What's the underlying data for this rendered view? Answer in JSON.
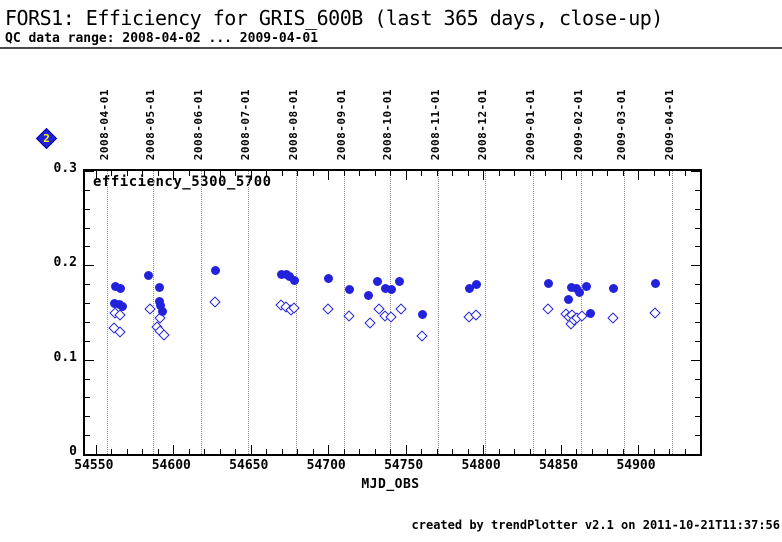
{
  "page": {
    "title": "FORS1: Efficiency for GRIS_600B (last 365 days, close-up)",
    "subtitle": "QC data range: 2008-04-02 ... 2009-04-01",
    "footer": "created by trendPlotter v2.1 on 2011-10-21T11:37:56"
  },
  "legend_marker": {
    "number": "2",
    "fill": "#2222dd",
    "number_color": "#ffff00"
  },
  "chart_data": {
    "type": "scatter",
    "inside_label": "efficiency_5300_5700",
    "xlabel": "MJD_OBS",
    "ylabel": "",
    "xlim": [
      54543,
      54940
    ],
    "ylim": [
      0,
      0.3
    ],
    "grid": "vertical-dotted-months",
    "point_color": "#2222dd",
    "grid_color": "#8a8a8a",
    "x_major_ticks": [
      54550,
      54600,
      54650,
      54700,
      54750,
      54800,
      54850,
      54900
    ],
    "x_major_tick_labels": [
      "54550",
      "54600",
      "54650",
      "54700",
      "54750",
      "54800",
      "54850",
      "54900"
    ],
    "x_minor_step": 10,
    "y_major_ticks": [
      0,
      0.1,
      0.2,
      0.3
    ],
    "y_major_tick_labels": [
      "0",
      "0.1",
      "0.2",
      "0.3"
    ],
    "y_minor_step": 0.02,
    "month_gridlines": [
      {
        "mjd": 54557,
        "label": "2008-04-01"
      },
      {
        "mjd": 54587,
        "label": "2008-05-01"
      },
      {
        "mjd": 54618,
        "label": "2008-06-01"
      },
      {
        "mjd": 54648,
        "label": "2008-07-01"
      },
      {
        "mjd": 54679,
        "label": "2008-08-01"
      },
      {
        "mjd": 54710,
        "label": "2008-09-01"
      },
      {
        "mjd": 54740,
        "label": "2008-10-01"
      },
      {
        "mjd": 54771,
        "label": "2008-11-01"
      },
      {
        "mjd": 54801,
        "label": "2008-12-01"
      },
      {
        "mjd": 54832,
        "label": "2009-01-01"
      },
      {
        "mjd": 54863,
        "label": "2009-02-01"
      },
      {
        "mjd": 54891,
        "label": "2009-03-01"
      },
      {
        "mjd": 54922,
        "label": "2009-04-01"
      }
    ],
    "series": [
      {
        "name": "efficiency_5300_5700_filled",
        "marker": "circle",
        "points": [
          [
            54562,
            0.16
          ],
          [
            54563,
            0.178
          ],
          [
            54565,
            0.158
          ],
          [
            54566,
            0.175
          ],
          [
            54567,
            0.156
          ],
          [
            54584,
            0.189
          ],
          [
            54591,
            0.177
          ],
          [
            54591,
            0.162
          ],
          [
            54592,
            0.157
          ],
          [
            54593,
            0.151
          ],
          [
            54627,
            0.194
          ],
          [
            54670,
            0.19
          ],
          [
            54673,
            0.19
          ],
          [
            54675,
            0.188
          ],
          [
            54678,
            0.184
          ],
          [
            54700,
            0.186
          ],
          [
            54714,
            0.174
          ],
          [
            54726,
            0.168
          ],
          [
            54732,
            0.183
          ],
          [
            54737,
            0.175
          ],
          [
            54741,
            0.174
          ],
          [
            54746,
            0.183
          ],
          [
            54761,
            0.148
          ],
          [
            54791,
            0.175
          ],
          [
            54796,
            0.18
          ],
          [
            54842,
            0.181
          ],
          [
            54855,
            0.164
          ],
          [
            54857,
            0.177
          ],
          [
            54860,
            0.175
          ],
          [
            54862,
            0.171
          ],
          [
            54867,
            0.178
          ],
          [
            54869,
            0.149
          ],
          [
            54884,
            0.175
          ],
          [
            54911,
            0.181
          ]
        ]
      },
      {
        "name": "efficiency_5300_5700_open",
        "marker": "diamond",
        "points": [
          [
            54562,
            0.133
          ],
          [
            54563,
            0.149
          ],
          [
            54566,
            0.147
          ],
          [
            54566,
            0.129
          ],
          [
            54585,
            0.153
          ],
          [
            54590,
            0.134
          ],
          [
            54592,
            0.144
          ],
          [
            54592,
            0.13
          ],
          [
            54594,
            0.126
          ],
          [
            54627,
            0.161
          ],
          [
            54670,
            0.157
          ],
          [
            54673,
            0.155
          ],
          [
            54676,
            0.152
          ],
          [
            54678,
            0.154
          ],
          [
            54700,
            0.153
          ],
          [
            54714,
            0.146
          ],
          [
            54727,
            0.138
          ],
          [
            54733,
            0.153
          ],
          [
            54737,
            0.146
          ],
          [
            54741,
            0.145
          ],
          [
            54747,
            0.153
          ],
          [
            54761,
            0.125
          ],
          [
            54791,
            0.145
          ],
          [
            54796,
            0.147
          ],
          [
            54842,
            0.153
          ],
          [
            54854,
            0.148
          ],
          [
            54856,
            0.145
          ],
          [
            54857,
            0.137
          ],
          [
            54858,
            0.147
          ],
          [
            54859,
            0.141
          ],
          [
            54861,
            0.144
          ],
          [
            54864,
            0.146
          ],
          [
            54884,
            0.144
          ],
          [
            54911,
            0.149
          ]
        ]
      }
    ]
  }
}
